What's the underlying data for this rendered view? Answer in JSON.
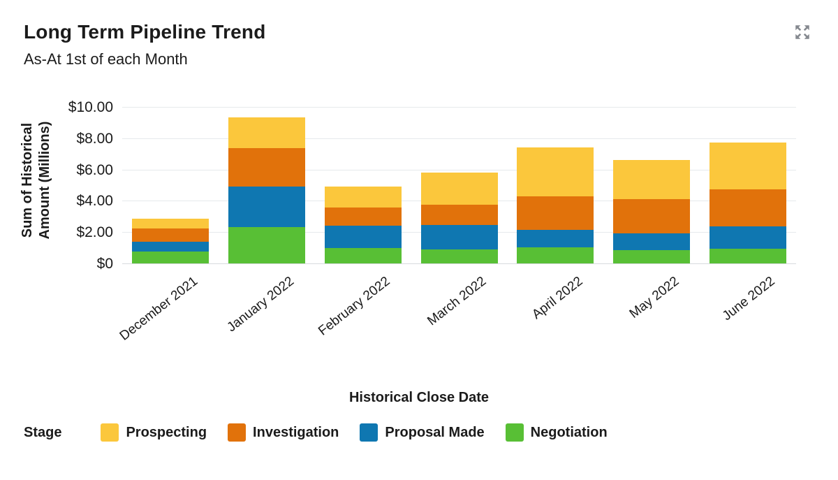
{
  "header": {
    "title": "Long Term Pipeline Trend",
    "subtitle": "As-At 1st of each Month",
    "expand_icon": "expand-arrows-icon",
    "expand_icon_color": "#85898f"
  },
  "legend": {
    "title": "Stage",
    "position": "bottom"
  },
  "chart_data": {
    "type": "bar",
    "stacked": true,
    "title": "Long Term Pipeline Trend",
    "subtitle": "As-At 1st of each Month",
    "xlabel": "Historical Close Date",
    "ylabel": "Sum of Historical Amount (Millions)",
    "grid": true,
    "legend_position": "bottom",
    "legend_title": "Stage",
    "ylim": [
      0,
      10.5
    ],
    "ytick_values": [
      0,
      2,
      4,
      6,
      8,
      10
    ],
    "ytick_labels": [
      "$0",
      "$2.00",
      "$4.00",
      "$6.00",
      "$8.00",
      "$10.00"
    ],
    "categories": [
      "December 2021",
      "January 2022",
      "February 2022",
      "March 2022",
      "April 2022",
      "May 2022",
      "June 2022"
    ],
    "series": [
      {
        "name": "Prospecting",
        "color": "#FBC73C",
        "values": [
          0.64,
          1.94,
          1.34,
          2.06,
          3.12,
          2.5,
          3.03
        ]
      },
      {
        "name": "Investigation",
        "color": "#E1720B",
        "values": [
          0.82,
          2.48,
          1.15,
          1.32,
          2.17,
          2.19,
          2.35
        ]
      },
      {
        "name": "Proposal Made",
        "color": "#0F77B1",
        "values": [
          0.64,
          2.57,
          1.43,
          1.56,
          1.1,
          1.09,
          1.42
        ]
      },
      {
        "name": "Negotiation",
        "color": "#58BF35",
        "values": [
          0.76,
          2.33,
          0.98,
          0.88,
          1.03,
          0.83,
          0.95
        ]
      }
    ],
    "totals": [
      2.86,
      9.32,
      4.9,
      5.82,
      7.42,
      6.61,
      7.75
    ]
  },
  "colors": {
    "gridline": "#e6e9ec",
    "axis_line": "#d7dbde",
    "text": "#1b1b1b",
    "background": "#ffffff"
  }
}
